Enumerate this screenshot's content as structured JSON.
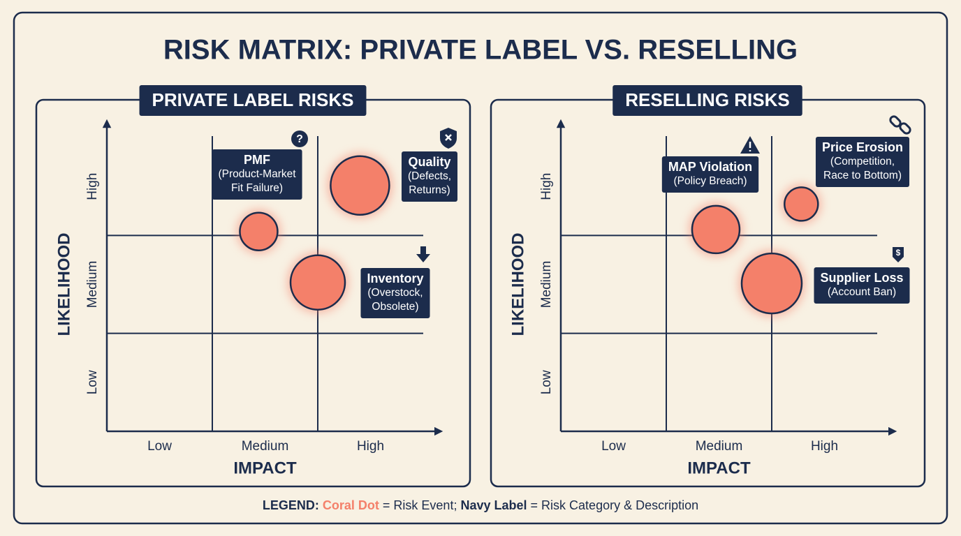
{
  "title": "RISK MATRIX: PRIVATE LABEL VS. RESELLING",
  "legend": {
    "lead": "LEGEND:",
    "dot": "Coral Dot",
    "dot_text": "= Risk Event;",
    "label": "Navy Label",
    "label_text": "= Risk Category & Description"
  },
  "chart_data": [
    {
      "type": "scatter",
      "title": "PRIVATE LABEL RISKS",
      "xlabel": "IMPACT",
      "ylabel": "LIKELIHOOD",
      "xlim": [
        0,
        3
      ],
      "ylim": [
        0,
        3
      ],
      "grid": true,
      "color": "#f4806a",
      "xticks": [
        {
          "value": 0.5,
          "label": "Low"
        },
        {
          "value": 1.5,
          "label": "Medium"
        },
        {
          "value": 2.5,
          "label": "High"
        }
      ],
      "yticks": [
        {
          "value": 0.5,
          "label": "Low"
        },
        {
          "value": 1.5,
          "label": "Medium"
        },
        {
          "value": 2.5,
          "label": "High"
        }
      ],
      "x": [
        1.44,
        2.4,
        2.0
      ],
      "values": [
        2.04,
        2.51,
        1.52
      ],
      "sizes": [
        27,
        42,
        39
      ],
      "labels": [
        "PMF",
        "Quality",
        "Inventory"
      ],
      "descriptions": [
        [
          "(Product-Market",
          "Fit Failure)"
        ],
        [
          "(Defects,",
          "Returns)"
        ],
        [
          "(Overstock,",
          "Obsolete)"
        ]
      ]
    },
    {
      "type": "scatter",
      "title": "RESELLING RISKS",
      "xlabel": "IMPACT",
      "ylabel": "LIKELIHOOD",
      "xlim": [
        0,
        3
      ],
      "ylim": [
        0,
        3
      ],
      "grid": true,
      "color": "#f4806a",
      "xticks": [
        {
          "value": 0.5,
          "label": "Low"
        },
        {
          "value": 1.5,
          "label": "Medium"
        },
        {
          "value": 2.5,
          "label": "High"
        }
      ],
      "yticks": [
        {
          "value": 0.5,
          "label": "Low"
        },
        {
          "value": 1.5,
          "label": "Medium"
        },
        {
          "value": 2.5,
          "label": "High"
        }
      ],
      "x": [
        1.47,
        2.28,
        2.0
      ],
      "values": [
        2.06,
        2.32,
        1.51
      ],
      "sizes": [
        34,
        24,
        43
      ],
      "labels": [
        "MAP Violation",
        "Price Erosion",
        "Supplier Loss"
      ],
      "descriptions": [
        [
          "(Policy Breach)"
        ],
        [
          "(Competition,",
          "Race to Bottom)"
        ],
        [
          "(Account Ban)"
        ]
      ]
    }
  ]
}
